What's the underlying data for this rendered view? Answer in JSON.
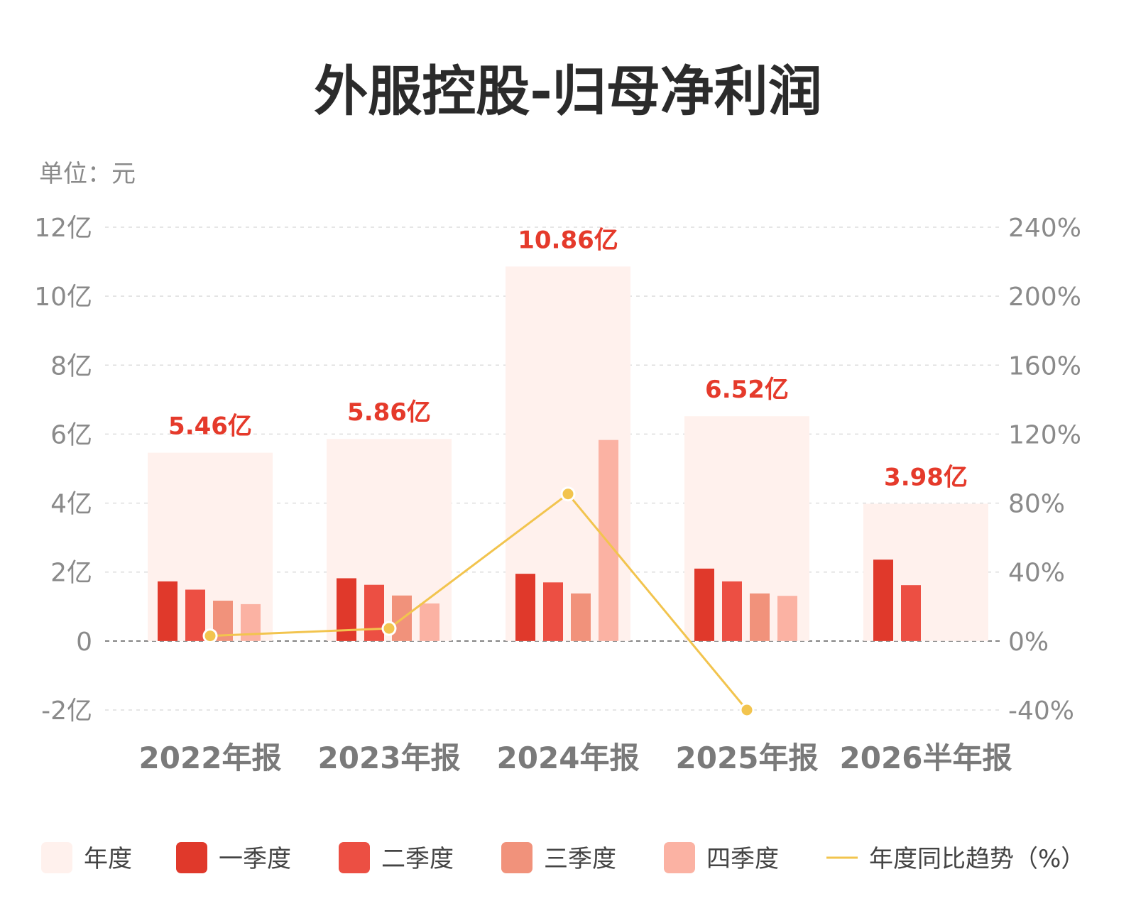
{
  "title": "外服控股-归母净利润",
  "unit_label": "单位：元",
  "colors": {
    "annual": "#fff1ed",
    "q1": "#e0392b",
    "q2": "#ec4f43",
    "q3": "#f1927b",
    "q4": "#fbb2a3",
    "trend": "#f2c44e",
    "label": "#e53a2b"
  },
  "chart_data": {
    "type": "bar",
    "categories": [
      "2022年报",
      "2023年报",
      "2024年报",
      "2025年报",
      "2026半年报"
    ],
    "y_left": {
      "min": -2,
      "max": 12,
      "ticks": [
        -2,
        0,
        2,
        4,
        6,
        8,
        10,
        12
      ],
      "tick_labels": [
        "-2亿",
        "0",
        "2亿",
        "4亿",
        "6亿",
        "8亿",
        "10亿",
        "12亿"
      ]
    },
    "y_right": {
      "min": -40,
      "max": 240,
      "ticks": [
        -40,
        0,
        40,
        80,
        120,
        160,
        200,
        240
      ],
      "tick_labels": [
        "-40%",
        "0%",
        "40%",
        "80%",
        "120%",
        "160%",
        "200%",
        "240%"
      ]
    },
    "annual_labels": [
      "5.46亿",
      "5.86亿",
      "10.86亿",
      "6.52亿",
      "3.98亿"
    ],
    "series": [
      {
        "key": "annual",
        "name": "年度",
        "values": [
          5.46,
          5.86,
          10.86,
          6.52,
          3.98
        ]
      },
      {
        "key": "q1",
        "name": "一季度",
        "values": [
          1.73,
          1.82,
          1.95,
          2.1,
          2.36
        ]
      },
      {
        "key": "q2",
        "name": "二季度",
        "values": [
          1.49,
          1.63,
          1.7,
          1.73,
          1.62
        ]
      },
      {
        "key": "q3",
        "name": "三季度",
        "values": [
          1.17,
          1.32,
          1.38,
          1.38,
          null
        ]
      },
      {
        "key": "q4",
        "name": "四季度",
        "values": [
          1.07,
          1.09,
          5.83,
          1.31,
          null
        ]
      }
    ],
    "trend": {
      "name": "年度同比趋势（%）",
      "values": [
        3,
        7.3,
        85.3,
        -40,
        null
      ]
    },
    "grid": true,
    "legend_position": "bottom"
  }
}
